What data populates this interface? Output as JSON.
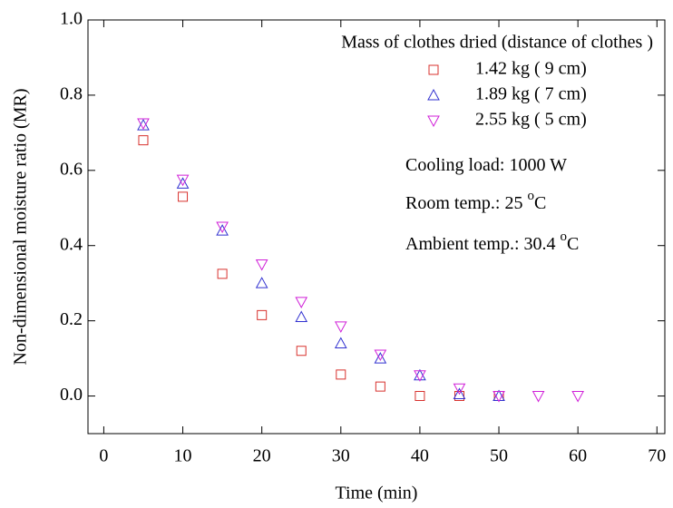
{
  "chart_data": {
    "type": "scatter",
    "x_label": "Time (min)",
    "y_label": "Non-dimensional moisture ratio (MR)",
    "legend_title": "Mass of clothes dried (distance of clothes )",
    "legend_position": "upper right",
    "annotations": [
      {
        "text": "Cooling load: 1000 W"
      },
      {
        "text": "Room temp.: 25 ",
        "sup": "o",
        "after": "C"
      },
      {
        "text": "Ambient temp.: 30.4 ",
        "sup": "o",
        "after": "C"
      }
    ],
    "xlim": [
      -2,
      71
    ],
    "ylim": [
      -0.1,
      1.0
    ],
    "xticks": [
      0,
      10,
      20,
      30,
      40,
      50,
      60,
      70
    ],
    "yticks": [
      {
        "value": 0,
        "label": "0.0"
      },
      0.2,
      0.4,
      0.6,
      0.8,
      {
        "value": 1,
        "label": "1.0"
      }
    ],
    "series": [
      {
        "name": "1.42 kg ( 9 cm)",
        "color": "#d8322e",
        "marker": "square",
        "x": [
          5,
          10,
          15,
          20,
          25,
          30,
          35,
          40,
          45,
          50
        ],
        "values": [
          0.68,
          0.53,
          0.325,
          0.215,
          0.12,
          0.057,
          0.025,
          0,
          0,
          0
        ]
      },
      {
        "name": "1.89 kg ( 7 cm)",
        "color": "#3232d0",
        "marker": "triangle-up",
        "x": [
          5,
          10,
          15,
          20,
          25,
          30,
          35,
          40,
          45,
          50
        ],
        "values": [
          0.72,
          0.565,
          0.44,
          0.3,
          0.21,
          0.14,
          0.1,
          0.055,
          0.005,
          0
        ]
      },
      {
        "name": "2.55 kg ( 5 cm)",
        "color": "#d020d8",
        "marker": "triangle-down",
        "x": [
          5,
          10,
          15,
          20,
          25,
          30,
          35,
          40,
          45,
          50,
          55,
          60
        ],
        "values": [
          0.725,
          0.575,
          0.45,
          0.35,
          0.25,
          0.185,
          0.11,
          0.055,
          0.02,
          0,
          0,
          0
        ]
      }
    ]
  }
}
